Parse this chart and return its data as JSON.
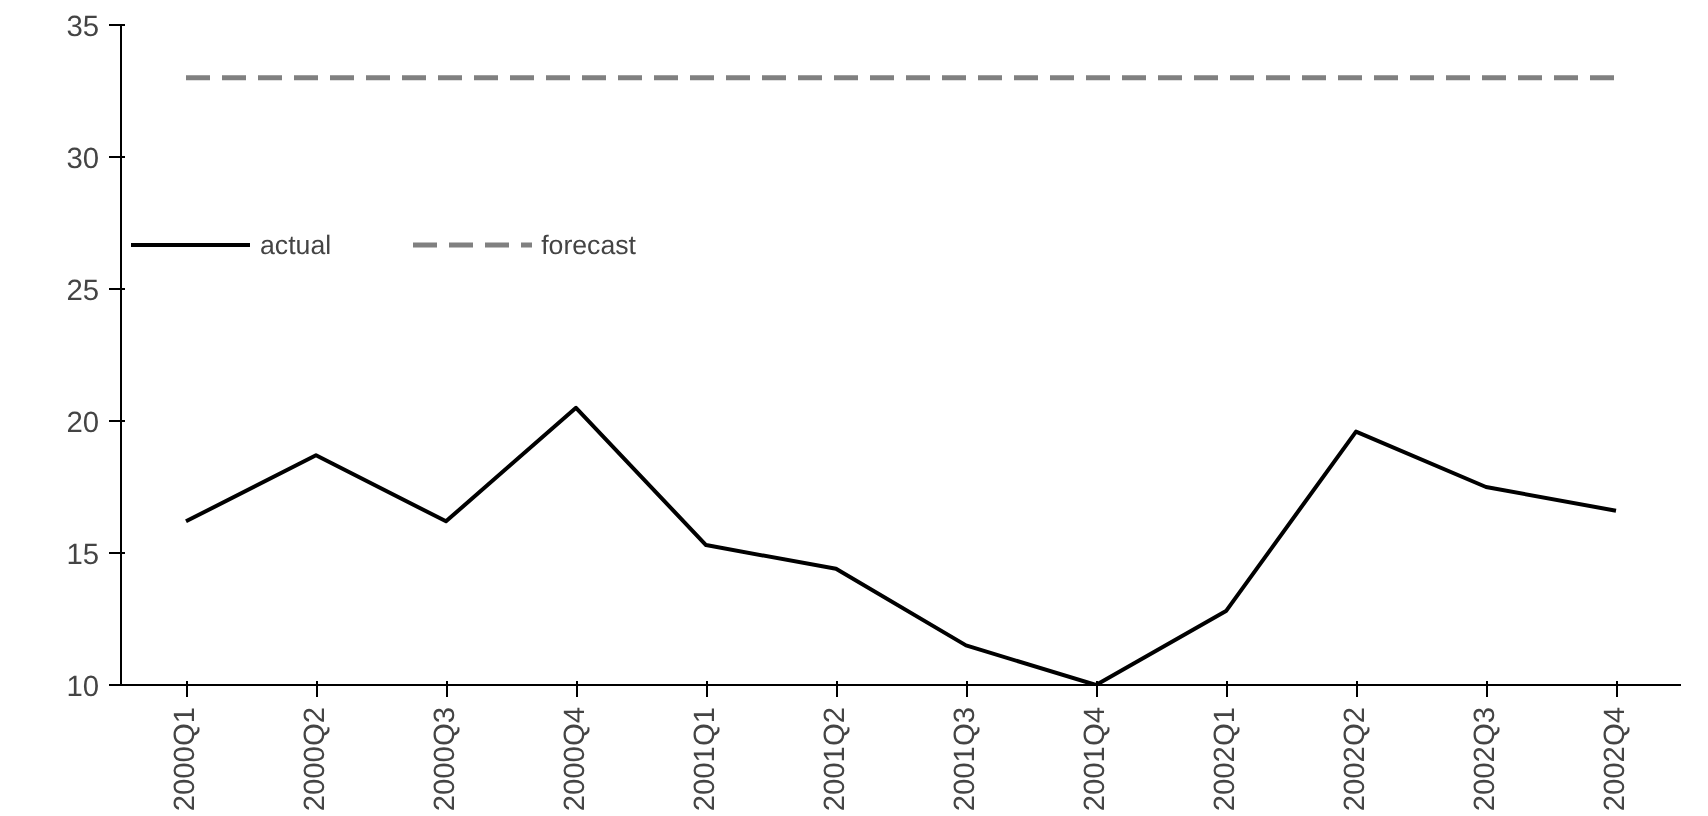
{
  "chart_data": {
    "type": "line",
    "categories": [
      "2000Q1",
      "2000Q2",
      "2000Q3",
      "2000Q4",
      "2001Q1",
      "2001Q2",
      "2001Q3",
      "2001Q4",
      "2002Q1",
      "2002Q2",
      "2002Q3",
      "2002Q4"
    ],
    "series": [
      {
        "name": "actual",
        "color": "#000000",
        "line_style": "solid",
        "values": [
          16.2,
          18.7,
          16.2,
          20.5,
          15.3,
          14.4,
          11.5,
          10.0,
          12.8,
          19.6,
          17.5,
          16.6
        ]
      },
      {
        "name": "forecast",
        "color": "#808080",
        "line_style": "dashed",
        "values": [
          33,
          33,
          33,
          33,
          33,
          33,
          33,
          33,
          33,
          33,
          33,
          33
        ]
      }
    ],
    "ylim": [
      10,
      35
    ],
    "yticks": [
      10,
      15,
      20,
      25,
      30,
      35
    ],
    "grid": false,
    "legend": "left",
    "marker": "none"
  }
}
